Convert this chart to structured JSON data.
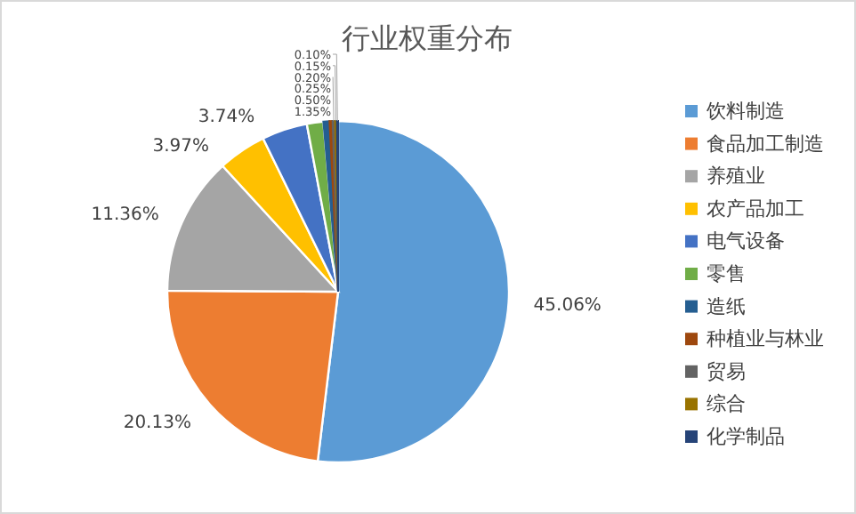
{
  "chart_data": {
    "type": "pie",
    "title": "行业权重分布",
    "categories": [
      "饮料制造",
      "食品加工制造",
      "养殖业",
      "农产品加工",
      "电气设备",
      "零售",
      "造纸",
      "种植业与林业",
      "贸易",
      "综合",
      "化学制品"
    ],
    "values": [
      45.06,
      20.13,
      11.36,
      3.97,
      3.74,
      1.35,
      0.5,
      0.25,
      0.2,
      0.15,
      0.1
    ],
    "value_labels": [
      "45.06%",
      "20.13%",
      "11.36%",
      "3.97%",
      "3.74%",
      "1.35%",
      "0.50%",
      "0.25%",
      "0.20%",
      "0.15%",
      "0.10%"
    ],
    "colors": [
      "#5b9bd5",
      "#ed7d31",
      "#a5a5a5",
      "#ffc000",
      "#4472c4",
      "#70ad47",
      "#255e91",
      "#9e480e",
      "#636363",
      "#997300",
      "#264478"
    ],
    "legend": "right"
  }
}
